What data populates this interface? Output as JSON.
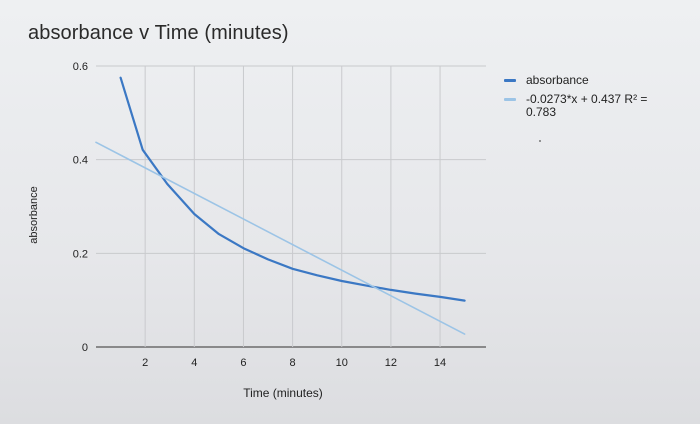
{
  "chart_data": {
    "type": "line",
    "title": "absorbance  v Time (minutes)",
    "xlabel": "Time (minutes)",
    "ylabel": "absorbance",
    "xlim": [
      0,
      15.3
    ],
    "ylim": [
      0,
      0.6
    ],
    "x_ticks": [
      2,
      4,
      6,
      8,
      10,
      12,
      14
    ],
    "y_ticks": [
      0,
      0.2,
      0.4,
      0.6
    ],
    "y_tick_labels": [
      "0",
      "0.2",
      "0.4",
      "0.6"
    ],
    "grid": true,
    "legend_position": "right",
    "series": [
      {
        "name": "absorbance",
        "color": "#3b78c4",
        "x": [
          1.0,
          1.9,
          2.9,
          4.0,
          5.0,
          6.0,
          7.0,
          8.0,
          9.0,
          10.0,
          11.0,
          12.0,
          13.0,
          14.0,
          15.0
        ],
        "y": [
          0.575,
          0.421,
          0.348,
          0.284,
          0.241,
          0.211,
          0.187,
          0.167,
          0.153,
          0.141,
          0.131,
          0.122,
          0.114,
          0.107,
          0.099
        ]
      },
      {
        "name": "-0.0273*x + 0.437 R² = 0.783",
        "color": "#9cc4e6",
        "trendline": true,
        "x": [
          0.0,
          15.0
        ],
        "y": [
          0.437,
          0.0275
        ]
      }
    ]
  },
  "legend": {
    "items": [
      {
        "label": "absorbance",
        "color": "#3b78c4"
      },
      {
        "label": "-0.0273*x + 0.437 R² =\n0.783",
        "color": "#9cc4e6"
      }
    ]
  }
}
